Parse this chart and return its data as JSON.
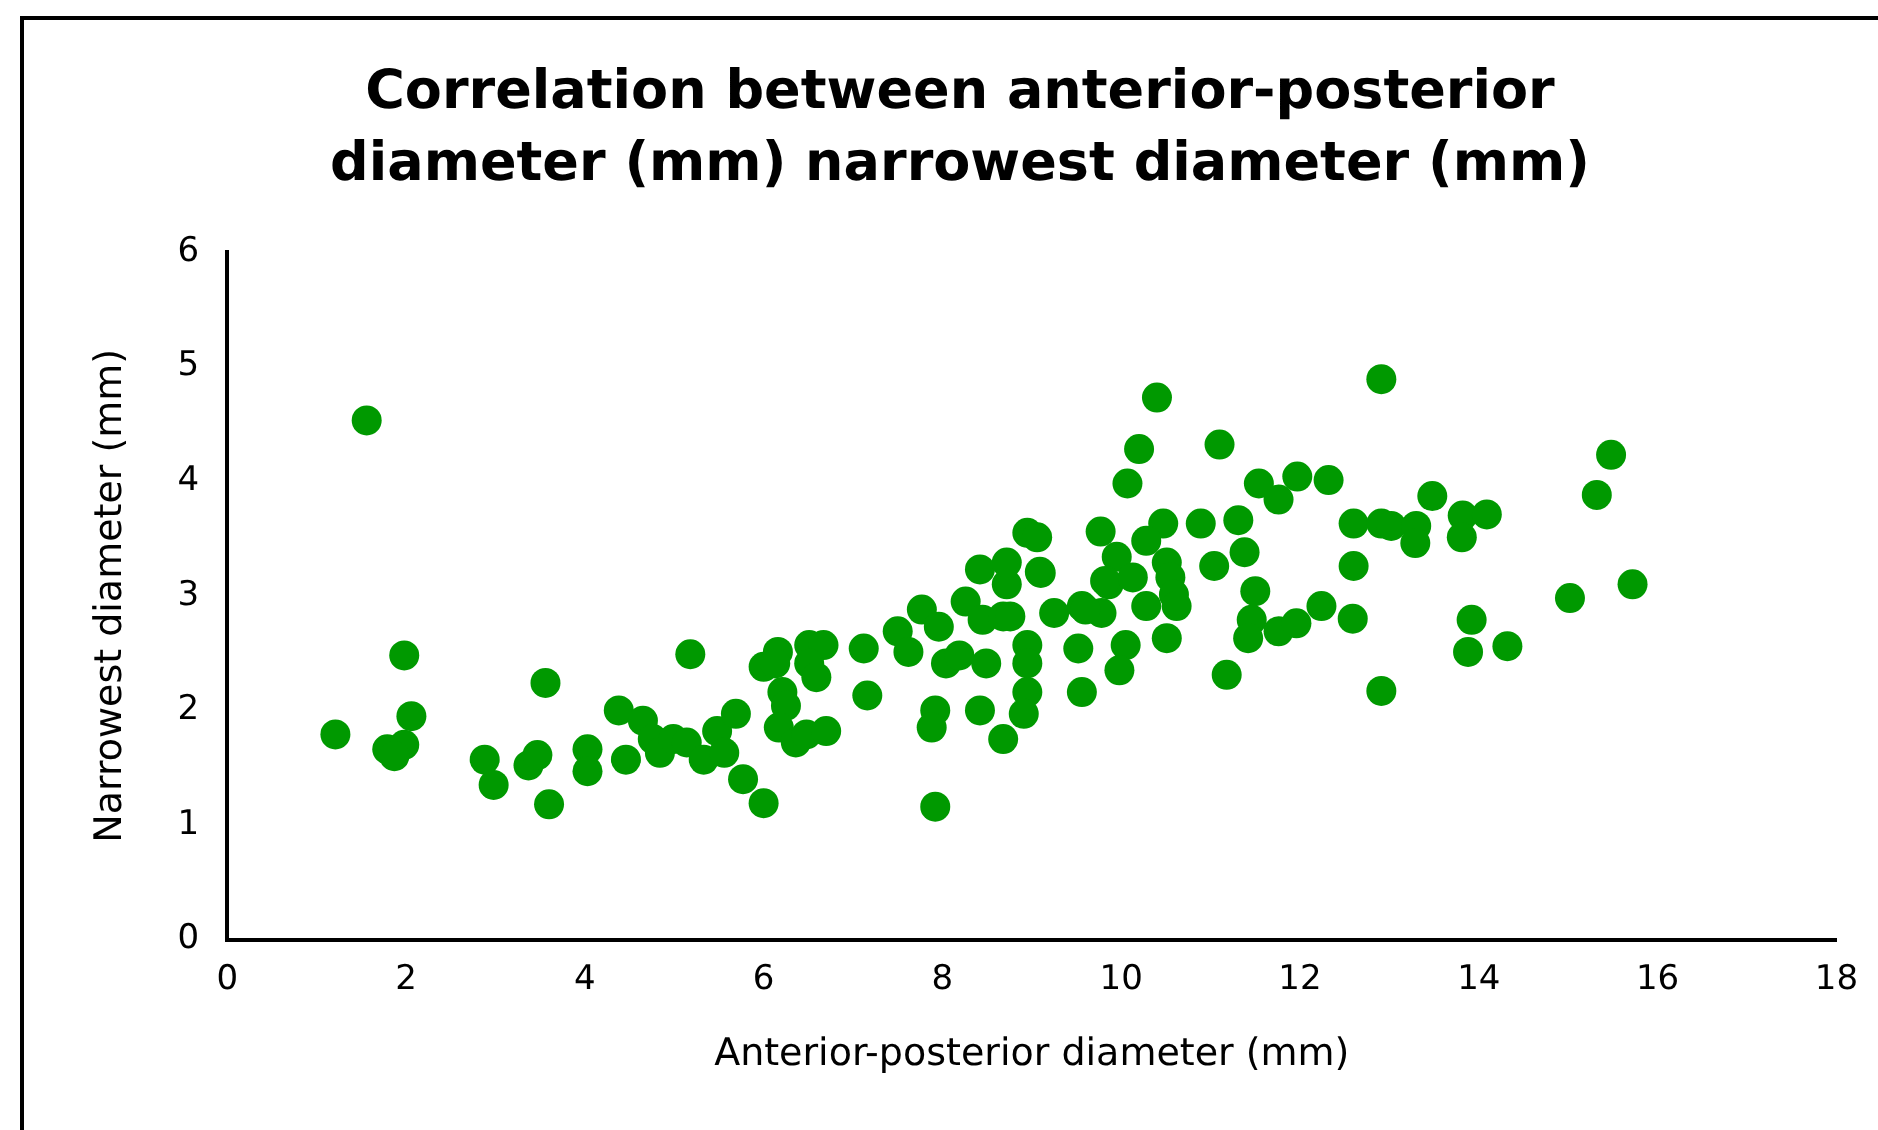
{
  "chart_data": {
    "type": "scatter",
    "title": "Correlation between anterior-posterior diameter (mm) narrowest diameter (mm)",
    "xlabel": "Anterior-posterior diameter (mm)",
    "ylabel": "Narrowest diameter (mm)",
    "xlim": [
      0,
      18
    ],
    "xticks": [
      0,
      2,
      4,
      6,
      8,
      10,
      12,
      14,
      16,
      18
    ],
    "ylim": [
      0,
      6
    ],
    "yticks": [
      0,
      1,
      2,
      3,
      4,
      5,
      6
    ],
    "grid": false,
    "legend": false,
    "marker": "circle",
    "series": [
      {
        "color": "#009900",
        "x": [
          1.56,
          1.98,
          1.21,
          2.06,
          1.79,
          1.98,
          1.87,
          2.88,
          2.98,
          3.56,
          3.37,
          3.47,
          3.6,
          4.03,
          4.03,
          4.38,
          4.46,
          4.65,
          4.76,
          4.84,
          4.99,
          5.14,
          5.18,
          5.33,
          5.48,
          5.56,
          5.69,
          5.77,
          6.0,
          6.0,
          6.16,
          6.51,
          6.67,
          6.13,
          6.21,
          6.25,
          6.17,
          6.36,
          6.48,
          6.7,
          6.51,
          6.59,
          7.16,
          7.12,
          7.5,
          7.62,
          7.77,
          7.96,
          8.04,
          8.19,
          8.26,
          8.42,
          8.72,
          8.45,
          8.68,
          8.76,
          8.49,
          7.92,
          7.88,
          7.92,
          8.42,
          8.68,
          8.95,
          8.95,
          8.95,
          8.91,
          9.1,
          9.25,
          9.56,
          9.78,
          9.52,
          10.05,
          9.98,
          9.56,
          9.86,
          10.28,
          12.91,
          10.4,
          10.2,
          10.07,
          11.1,
          11.54,
          11.76,
          11.97,
          12.32,
          8.95,
          9.06,
          9.77,
          8.72,
          9.09,
          10.47,
          10.28,
          9.95,
          9.82,
          10.13,
          10.51,
          10.55,
          10.59,
          10.62,
          9.6,
          10.51,
          11.18,
          10.89,
          11.31,
          11.04,
          11.38,
          11.5,
          11.46,
          11.42,
          11.76,
          11.96,
          12.24,
          12.6,
          12.91,
          13.02,
          12.6,
          12.59,
          12.91,
          15.48,
          15.32,
          13.48,
          13.3,
          13.29,
          13.82,
          14.09,
          13.81,
          15.02,
          15.72,
          13.92,
          13.88,
          14.32
        ],
        "values": [
          4.53,
          2.48,
          1.79,
          1.95,
          1.66,
          1.7,
          1.6,
          1.57,
          1.35,
          2.24,
          1.52,
          1.61,
          1.18,
          1.66,
          1.47,
          2.0,
          1.57,
          1.91,
          1.75,
          1.63,
          1.75,
          1.72,
          2.49,
          1.57,
          1.82,
          1.63,
          1.97,
          1.4,
          2.38,
          1.19,
          2.51,
          2.57,
          2.57,
          2.41,
          2.16,
          2.04,
          1.85,
          1.72,
          1.79,
          1.82,
          2.41,
          2.29,
          2.13,
          2.54,
          2.69,
          2.51,
          2.88,
          2.73,
          2.41,
          2.48,
          2.95,
          3.23,
          3.1,
          2.79,
          2.82,
          2.82,
          2.41,
          2.0,
          1.85,
          1.16,
          2.0,
          1.75,
          2.57,
          2.41,
          2.16,
          1.97,
          3.2,
          2.85,
          2.91,
          2.85,
          2.54,
          2.57,
          2.35,
          2.16,
          3.1,
          2.91,
          4.89,
          4.73,
          4.28,
          3.98,
          4.32,
          3.98,
          3.84,
          4.04,
          4.01,
          3.55,
          3.51,
          3.56,
          3.29,
          3.21,
          3.63,
          3.48,
          3.34,
          3.13,
          3.16,
          3.29,
          3.16,
          3.01,
          2.91,
          2.88,
          2.63,
          2.31,
          3.63,
          3.66,
          3.26,
          3.38,
          3.04,
          2.79,
          2.63,
          2.69,
          2.76,
          2.91,
          3.63,
          3.63,
          3.61,
          3.26,
          2.8,
          2.17,
          4.23,
          3.88,
          3.87,
          3.61,
          3.46,
          3.7,
          3.71,
          3.51,
          2.98,
          3.1,
          2.79,
          2.51,
          2.56
        ]
      }
    ]
  }
}
